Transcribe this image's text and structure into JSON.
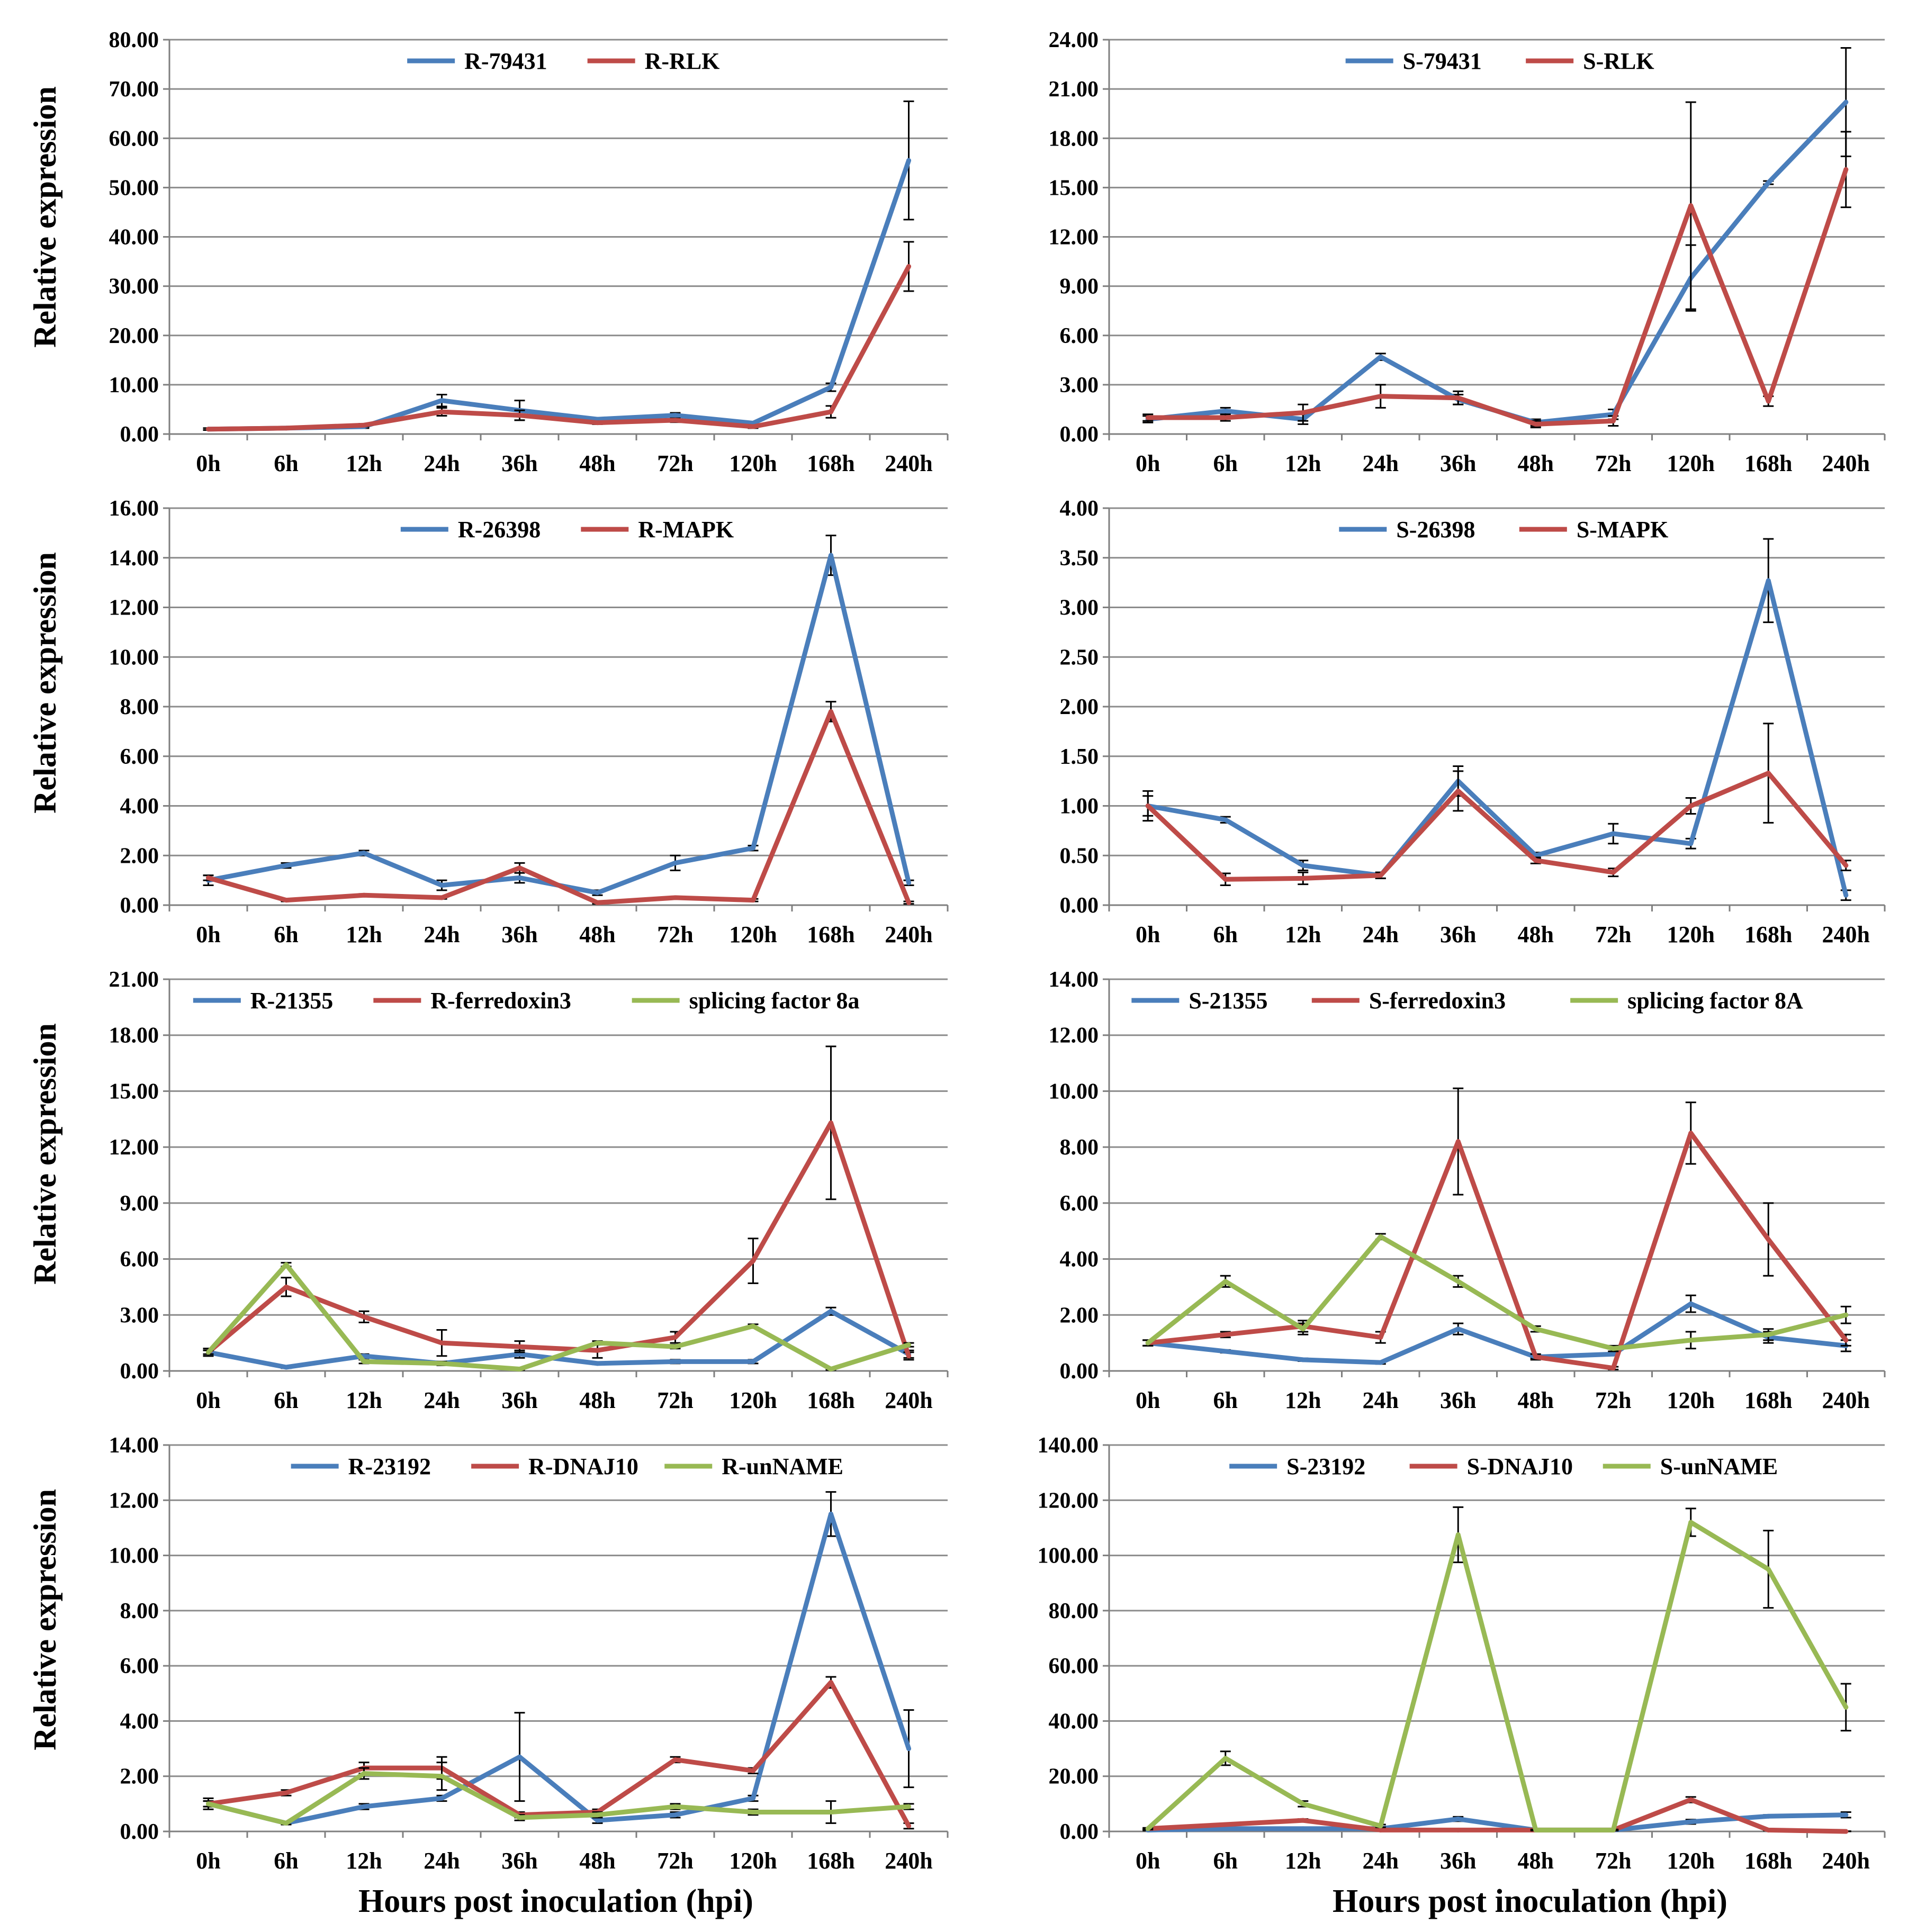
{
  "figure": {
    "ylabel": "Relative expression",
    "xlabel": "Hours post inoculation (hpi)",
    "categories": [
      "0h",
      "6h",
      "12h",
      "24h",
      "36h",
      "48h",
      "72h",
      "120h",
      "168h",
      "240h"
    ]
  },
  "colors": {
    "blue": "#4a7ebb",
    "red": "#be4b48",
    "green": "#98b954"
  },
  "chart_data": [
    {
      "type": "line",
      "panel": "A-left",
      "ylabel": "Relative expression",
      "xlabel": "",
      "categories": [
        "0h",
        "6h",
        "12h",
        "24h",
        "36h",
        "48h",
        "72h",
        "120h",
        "168h",
        "240h"
      ],
      "ylim": [
        0,
        80
      ],
      "ytick_step": 10,
      "tick_labels": [
        "0.00",
        "10.00",
        "20.00",
        "30.00",
        "40.00",
        "50.00",
        "60.00",
        "70.00",
        "80.00"
      ],
      "legend": "top-center",
      "series": [
        {
          "name": "R-79431",
          "color": "blue",
          "values": [
            1.0,
            1.2,
            1.5,
            6.8,
            4.8,
            3.0,
            3.8,
            2.2,
            9.5,
            55.5
          ],
          "errors": [
            0.2,
            0.2,
            0.3,
            1.2,
            2.0,
            0.3,
            0.5,
            0.3,
            0.8,
            12.0
          ]
        },
        {
          "name": "R-RLK",
          "color": "red",
          "values": [
            1.0,
            1.2,
            1.8,
            4.5,
            3.8,
            2.3,
            2.8,
            1.5,
            4.5,
            34.0
          ],
          "errors": [
            0.2,
            0.2,
            0.3,
            0.8,
            1.0,
            0.3,
            0.4,
            0.3,
            1.2,
            5.0
          ]
        }
      ]
    },
    {
      "type": "line",
      "panel": "A-right",
      "ylabel": "",
      "xlabel": "",
      "categories": [
        "0h",
        "6h",
        "12h",
        "24h",
        "36h",
        "48h",
        "72h",
        "120h",
        "168h",
        "240h"
      ],
      "ylim": [
        0,
        24
      ],
      "ytick_step": 3,
      "tick_labels": [
        "0.00",
        "3.00",
        "6.00",
        "9.00",
        "12.00",
        "15.00",
        "18.00",
        "21.00",
        "24.00"
      ],
      "legend": "top-center",
      "series": [
        {
          "name": "S-79431",
          "color": "blue",
          "values": [
            0.9,
            1.4,
            0.9,
            4.7,
            2.1,
            0.7,
            1.2,
            9.5,
            15.3,
            20.2
          ],
          "errors": [
            0.2,
            0.2,
            0.3,
            0.2,
            0.3,
            0.2,
            0.3,
            2.0,
            0.1,
            3.3
          ]
        },
        {
          "name": "S-RLK",
          "color": "red",
          "values": [
            1.0,
            1.0,
            1.3,
            2.3,
            2.2,
            0.6,
            0.8,
            13.9,
            2.0,
            16.1
          ],
          "errors": [
            0.2,
            0.2,
            0.5,
            0.7,
            0.4,
            0.2,
            0.3,
            6.3,
            0.3,
            2.3
          ]
        }
      ]
    },
    {
      "type": "line",
      "panel": "B-left",
      "ylabel": "Relative expression",
      "xlabel": "",
      "categories": [
        "0h",
        "6h",
        "12h",
        "24h",
        "36h",
        "48h",
        "72h",
        "120h",
        "168h",
        "240h"
      ],
      "ylim": [
        0,
        16
      ],
      "ytick_step": 2,
      "tick_labels": [
        "0.00",
        "2.00",
        "4.00",
        "6.00",
        "8.00",
        "10.00",
        "12.00",
        "14.00",
        "16.00"
      ],
      "legend": "top-center",
      "series": [
        {
          "name": "R-26398",
          "color": "blue",
          "values": [
            1.0,
            1.6,
            2.1,
            0.8,
            1.1,
            0.5,
            1.7,
            2.3,
            14.1,
            0.9
          ],
          "errors": [
            0.2,
            0.1,
            0.1,
            0.2,
            0.2,
            0.1,
            0.3,
            0.1,
            0.8,
            0.1
          ]
        },
        {
          "name": "R-MAPK",
          "color": "red",
          "values": [
            1.1,
            0.2,
            0.4,
            0.3,
            1.5,
            0.1,
            0.3,
            0.2,
            7.8,
            0.1
          ],
          "errors": [
            0.1,
            0.05,
            0.05,
            0.05,
            0.2,
            0.05,
            0.05,
            0.05,
            0.4,
            0.05
          ]
        }
      ]
    },
    {
      "type": "line",
      "panel": "B-right",
      "ylabel": "",
      "xlabel": "",
      "categories": [
        "0h",
        "6h",
        "12h",
        "24h",
        "36h",
        "48h",
        "72h",
        "120h",
        "168h",
        "240h"
      ],
      "ylim": [
        0,
        4
      ],
      "ytick_step": 0.5,
      "tick_labels": [
        "0.00",
        "0.50",
        "1.00",
        "1.50",
        "2.00",
        "2.50",
        "3.00",
        "3.50",
        "4.00"
      ],
      "legend": "top-center",
      "series": [
        {
          "name": "S-26398",
          "color": "blue",
          "values": [
            1.0,
            0.86,
            0.4,
            0.3,
            1.25,
            0.5,
            0.72,
            0.62,
            3.27,
            0.1
          ],
          "errors": [
            0.15,
            0.03,
            0.05,
            0.03,
            0.15,
            0.03,
            0.1,
            0.05,
            0.42,
            0.05
          ]
        },
        {
          "name": "S-MAPK",
          "color": "red",
          "values": [
            1.0,
            0.26,
            0.27,
            0.3,
            1.15,
            0.45,
            0.33,
            1.0,
            1.33,
            0.4
          ],
          "errors": [
            0.1,
            0.06,
            0.06,
            0.03,
            0.2,
            0.03,
            0.04,
            0.08,
            0.5,
            0.05
          ]
        }
      ]
    },
    {
      "type": "line",
      "panel": "C-left",
      "ylabel": "Relative expression",
      "xlabel": "",
      "categories": [
        "0h",
        "6h",
        "12h",
        "24h",
        "36h",
        "48h",
        "72h",
        "120h",
        "168h",
        "240h"
      ],
      "ylim": [
        0,
        21
      ],
      "ytick_step": 3,
      "tick_labels": [
        "0.00",
        "3.00",
        "6.00",
        "9.00",
        "12.00",
        "15.00",
        "18.00",
        "21.00"
      ],
      "legend": "top-center",
      "series": [
        {
          "name": "R-21355",
          "color": "blue",
          "values": [
            1.0,
            0.2,
            0.8,
            0.4,
            0.9,
            0.4,
            0.5,
            0.5,
            3.2,
            0.9
          ],
          "errors": [
            0.2,
            0.05,
            0.1,
            0.1,
            0.2,
            0.05,
            0.1,
            0.1,
            0.2,
            0.2
          ]
        },
        {
          "name": "R-ferredoxin3",
          "color": "red",
          "values": [
            1.0,
            4.5,
            2.9,
            1.5,
            1.3,
            1.1,
            1.8,
            5.9,
            13.3,
            0.8
          ],
          "errors": [
            0.2,
            0.5,
            0.3,
            0.7,
            0.3,
            0.4,
            0.3,
            1.2,
            4.1,
            0.2
          ]
        },
        {
          "name": "splicing factor 8a",
          "color": "green",
          "values": [
            1.0,
            5.7,
            0.5,
            0.4,
            0.1,
            1.5,
            1.3,
            2.4,
            0.1,
            1.4
          ],
          "errors": [
            0.1,
            0.1,
            0.1,
            0.1,
            0.05,
            0.1,
            0.1,
            0.1,
            0.05,
            0.1
          ]
        }
      ]
    },
    {
      "type": "line",
      "panel": "C-right",
      "ylabel": "",
      "xlabel": "",
      "categories": [
        "0h",
        "6h",
        "12h",
        "24h",
        "36h",
        "48h",
        "72h",
        "120h",
        "168h",
        "240h"
      ],
      "ylim": [
        0,
        14
      ],
      "ytick_step": 2,
      "tick_labels": [
        "0.00",
        "2.00",
        "4.00",
        "6.00",
        "8.00",
        "10.00",
        "12.00",
        "14.00"
      ],
      "legend": "top-center",
      "series": [
        {
          "name": "S-21355",
          "color": "blue",
          "values": [
            1.0,
            0.7,
            0.4,
            0.3,
            1.5,
            0.5,
            0.6,
            2.4,
            1.2,
            0.9
          ],
          "errors": [
            0.1,
            0.05,
            0.05,
            0.05,
            0.2,
            0.05,
            0.05,
            0.3,
            0.2,
            0.2
          ]
        },
        {
          "name": "S-ferredoxin3",
          "color": "red",
          "values": [
            1.0,
            1.3,
            1.6,
            1.2,
            8.2,
            0.5,
            0.1,
            8.5,
            4.7,
            1.1
          ],
          "errors": [
            0.1,
            0.1,
            0.2,
            0.2,
            1.9,
            0.1,
            0.05,
            1.1,
            1.3,
            0.2
          ]
        },
        {
          "name": "splicing factor 8A",
          "color": "green",
          "values": [
            1.0,
            3.2,
            1.5,
            4.8,
            3.2,
            1.5,
            0.8,
            1.1,
            1.3,
            2.0
          ],
          "errors": [
            0.1,
            0.2,
            0.2,
            0.1,
            0.2,
            0.1,
            0.1,
            0.3,
            0.2,
            0.3
          ]
        }
      ]
    },
    {
      "type": "line",
      "panel": "D-left",
      "ylabel": "Relative expression",
      "xlabel": "Hours post inoculation (hpi)",
      "categories": [
        "0h",
        "6h",
        "12h",
        "24h",
        "36h",
        "48h",
        "72h",
        "120h",
        "168h",
        "240h"
      ],
      "ylim": [
        0,
        14
      ],
      "ytick_step": 2,
      "tick_labels": [
        "0.00",
        "2.00",
        "4.00",
        "6.00",
        "8.00",
        "10.00",
        "12.00",
        "14.00"
      ],
      "legend": "top-center",
      "series": [
        {
          "name": "R-23192",
          "color": "blue",
          "values": [
            1.0,
            0.3,
            0.9,
            1.2,
            2.7,
            0.4,
            0.6,
            1.2,
            11.5,
            3.0
          ],
          "errors": [
            0.1,
            0.05,
            0.1,
            0.1,
            1.6,
            0.1,
            0.1,
            0.1,
            0.8,
            1.4
          ]
        },
        {
          "name": "R-DNAJ10",
          "color": "red",
          "values": [
            1.0,
            1.4,
            2.3,
            2.3,
            0.6,
            0.7,
            2.6,
            2.2,
            5.4,
            0.2
          ],
          "errors": [
            0.1,
            0.1,
            0.2,
            0.4,
            0.1,
            0.1,
            0.1,
            0.1,
            0.2,
            0.1
          ]
        },
        {
          "name": "R-unNAME",
          "color": "green",
          "values": [
            1.0,
            0.3,
            2.1,
            2.0,
            0.5,
            0.6,
            0.9,
            0.7,
            0.7,
            0.9
          ],
          "errors": [
            0.2,
            0.05,
            0.2,
            0.5,
            0.1,
            0.1,
            0.1,
            0.1,
            0.4,
            0.1
          ]
        }
      ]
    },
    {
      "type": "line",
      "panel": "D-right",
      "ylabel": "",
      "xlabel": "Hours post inoculation (hpi)",
      "categories": [
        "0h",
        "6h",
        "12h",
        "24h",
        "36h",
        "48h",
        "72h",
        "120h",
        "168h",
        "240h"
      ],
      "ylim": [
        0,
        140
      ],
      "ytick_step": 20,
      "tick_labels": [
        "0.00",
        "20.00",
        "40.00",
        "60.00",
        "80.00",
        "100.00",
        "120.00",
        "140.00"
      ],
      "legend": "top-center",
      "series": [
        {
          "name": "S-23192",
          "color": "blue",
          "values": [
            0.5,
            1.0,
            1.0,
            1.0,
            4.5,
            0.5,
            0.5,
            3.5,
            5.5,
            6.0
          ],
          "errors": [
            0.2,
            0.3,
            0.3,
            0.3,
            0.8,
            0.2,
            0.2,
            0.8,
            0.5,
            1.0
          ]
        },
        {
          "name": "S-DNAJ10",
          "color": "red",
          "values": [
            1.0,
            2.5,
            4.0,
            0.5,
            0.5,
            0.5,
            0.5,
            11.5,
            0.5,
            0.0
          ],
          "errors": [
            0.2,
            0.4,
            0.5,
            0.2,
            0.2,
            0.2,
            0.2,
            1.0,
            0.2,
            0.1
          ]
        },
        {
          "name": "S-unNAME",
          "color": "green",
          "values": [
            1.0,
            26.5,
            10.0,
            2.0,
            107.5,
            0.5,
            0.5,
            112.0,
            95.0,
            45.0
          ],
          "errors": [
            0.3,
            2.5,
            1.0,
            0.5,
            10.0,
            0.2,
            0.2,
            5.0,
            14.0,
            8.5
          ]
        }
      ]
    }
  ]
}
